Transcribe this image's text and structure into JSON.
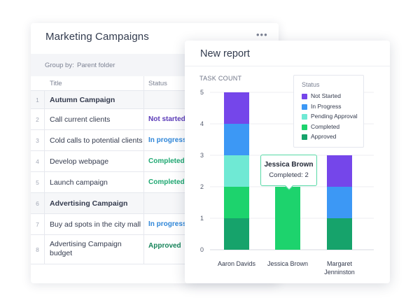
{
  "campaigns": {
    "title": "Marketing Campaigns",
    "more_icon": "more-horizontal-icon",
    "group_by_label": "Group by:",
    "group_by_value": "Parent folder",
    "columns": {
      "title": "Title",
      "status": "Status"
    },
    "rows": [
      {
        "num": "1",
        "title": "Autumn Campaign",
        "status": "",
        "group": true
      },
      {
        "num": "2",
        "title": "Call current clients",
        "status": "Not started"
      },
      {
        "num": "3",
        "title": "Cold calls to potential clients",
        "status": "In progress"
      },
      {
        "num": "4",
        "title": "Develop webpage",
        "status": "Completed"
      },
      {
        "num": "5",
        "title": "Launch campaign",
        "status": "Completed"
      },
      {
        "num": "6",
        "title": "Advertising Campaign",
        "status": "",
        "group": true
      },
      {
        "num": "7",
        "title": "Buy ad spots in the city mall",
        "status": "In progress"
      },
      {
        "num": "8",
        "title": "Advertising Campaign budget",
        "status": "Approved"
      }
    ],
    "status_colors": {
      "Not started": "#5b3bb8",
      "In progress": "#2f86d8",
      "Completed": "#1fa872",
      "Approved": "#17845a"
    }
  },
  "report": {
    "title": "New report",
    "chart_label": "TASK COUNT",
    "legend_title": "Status",
    "tooltip": {
      "name": "Jessica Brown",
      "value": "Completed: 2"
    }
  },
  "chart_data": {
    "type": "bar",
    "stacked": true,
    "categories": [
      "Aaron Davids",
      "Jessica Brown",
      "Margaret Jenninston"
    ],
    "category_lines": [
      [
        "Aaron Davids"
      ],
      [
        "Jessica Brown"
      ],
      [
        "Margaret",
        "Jenninston"
      ]
    ],
    "ylim": [
      0,
      5
    ],
    "yticks": [
      0,
      1,
      2,
      3,
      4,
      5
    ],
    "grid": true,
    "legend_position": "top-right",
    "series": [
      {
        "name": "Approved",
        "color": "#16a36b",
        "values": [
          1,
          0,
          1
        ]
      },
      {
        "name": "Completed",
        "color": "#1dd36d",
        "values": [
          1,
          2,
          0
        ]
      },
      {
        "name": "Pending Approval",
        "color": "#6fe9d4",
        "values": [
          1,
          0,
          0
        ]
      },
      {
        "name": "In Progress",
        "color": "#3c98f5",
        "values": [
          1,
          0,
          1
        ]
      },
      {
        "name": "Not Started",
        "color": "#7546ea",
        "values": [
          1,
          0,
          1
        ]
      }
    ]
  }
}
